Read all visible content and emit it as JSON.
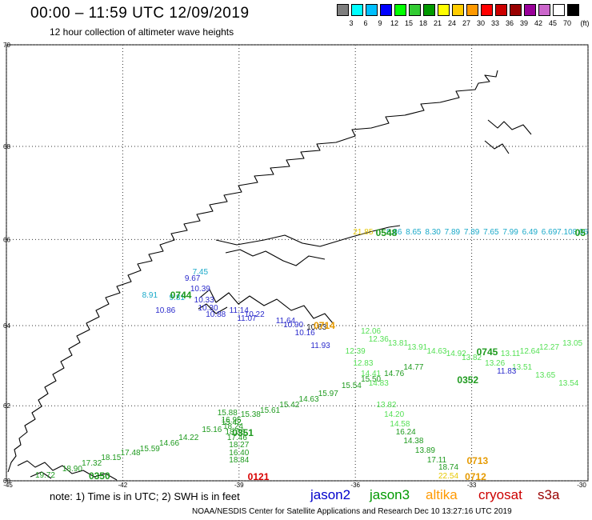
{
  "header": {
    "title": "00:00 – 11:59 UTC 12/09/2019",
    "subtitle": "12 hour collection of altimeter wave heights"
  },
  "color_scale": {
    "colors": [
      "#7f7f7f",
      "#00ffff",
      "#00bfff",
      "#0000ff",
      "#00ff00",
      "#33cc33",
      "#009900",
      "#ffff00",
      "#ffcc00",
      "#ff9900",
      "#ff0000",
      "#cc0000",
      "#990000",
      "#990099",
      "#cc66cc",
      "#ffffff",
      "#000000"
    ],
    "labels": [
      "3",
      "6",
      "9",
      "12",
      "15",
      "18",
      "21",
      "24",
      "27",
      "30",
      "33",
      "36",
      "39",
      "42",
      "45",
      "70"
    ],
    "unit": "(ft)"
  },
  "map": {
    "lat_labels": [
      "70",
      "68",
      "66",
      "64",
      "62",
      "60"
    ],
    "lon_labels": [
      "-45",
      "-42",
      "-39",
      "-36",
      "-33",
      "-30"
    ]
  },
  "tracks": [
    {
      "color": "#1e9a1e",
      "points": [
        [
          "19.72",
          -44.0,
          60.13
        ],
        [
          "18.90",
          -43.3,
          60.3
        ],
        [
          "17.32",
          -42.8,
          60.45
        ],
        [
          "18.15",
          -42.3,
          60.6
        ],
        [
          "17.48",
          -41.8,
          60.75
        ],
        [
          "15.59",
          -41.3,
          60.85
        ],
        [
          "14.66",
          -40.8,
          61.0
        ],
        [
          "14.22",
          -40.3,
          61.15
        ],
        [
          "15.16",
          -39.7,
          61.35
        ],
        [
          "15.42",
          -39.2,
          61.55
        ],
        [
          "15.38",
          -38.7,
          61.75
        ],
        [
          "15.61",
          -38.2,
          61.85
        ],
        [
          "15.42",
          -37.7,
          62.0
        ],
        [
          "14.63",
          -37.2,
          62.15
        ],
        [
          "15.97",
          -36.7,
          62.3
        ],
        [
          "15.54",
          -36.1,
          62.5
        ],
        [
          "15.50",
          -35.6,
          62.65
        ],
        [
          "14.76",
          -35.0,
          62.8
        ],
        [
          "14.77",
          -34.5,
          62.95
        ]
      ]
    },
    {
      "color": "#1e9a1e",
      "points": [
        [
          "15.88",
          -39.3,
          61.8
        ],
        [
          "16.95",
          -39.2,
          61.6
        ],
        [
          "18.24",
          -39.15,
          61.45
        ],
        [
          "18.36",
          -39.1,
          61.3
        ],
        [
          "17.46",
          -39.05,
          61.15
        ],
        [
          "18.27",
          -39.0,
          60.95
        ],
        [
          "16.40",
          -39.0,
          60.75
        ],
        [
          "18.84",
          -39.0,
          60.55
        ]
      ]
    },
    {
      "color": "#55e055",
      "points": [
        [
          "12.36",
          -35.4,
          63.65
        ],
        [
          "13.81",
          -34.9,
          63.55
        ],
        [
          "13.91",
          -34.4,
          63.45
        ],
        [
          "14.63",
          -33.9,
          63.35
        ],
        [
          "14.92",
          -33.4,
          63.3
        ],
        [
          "13.82",
          -33.0,
          63.2
        ],
        [
          "13.26",
          -32.4,
          63.05
        ],
        [
          "13.11",
          -32.0,
          63.3
        ],
        [
          "12.64",
          -31.5,
          63.35
        ],
        [
          "12.27",
          -31.0,
          63.45
        ],
        [
          "13.05",
          -30.4,
          63.55
        ],
        [
          "13.51",
          -31.7,
          62.95
        ],
        [
          "13.65",
          -31.1,
          62.75
        ],
        [
          "13.54",
          -30.5,
          62.55
        ]
      ]
    },
    {
      "color": "#55e055",
      "points": [
        [
          "12.06",
          -35.6,
          63.85
        ],
        [
          "12.39",
          -36.0,
          63.35
        ],
        [
          "12.83",
          -35.8,
          63.05
        ],
        [
          "14.41",
          -35.6,
          62.8
        ],
        [
          "14.83",
          -35.4,
          62.55
        ],
        [
          "13.82",
          -35.2,
          62.0
        ],
        [
          "14.20",
          -35.0,
          61.75
        ],
        [
          "14.58",
          -34.85,
          61.5
        ]
      ]
    },
    {
      "color": "#1e9a1e",
      "points": [
        [
          "16.24",
          -34.7,
          61.3
        ],
        [
          "14.38",
          -34.5,
          61.05
        ],
        [
          "13.89",
          -34.2,
          60.8
        ],
        [
          "17.11",
          -33.9,
          60.55
        ],
        [
          "18.74",
          -33.6,
          60.35
        ]
      ]
    },
    {
      "color": "#2b2bcc",
      "points": [
        [
          "9.67",
          -40.2,
          65.1
        ],
        [
          "10.39",
          -40.0,
          64.85
        ],
        [
          "10.33",
          -39.9,
          64.6
        ],
        [
          "10.30",
          -39.8,
          64.4
        ],
        [
          "10.86",
          -40.9,
          64.35
        ],
        [
          "10.88",
          -39.6,
          64.25
        ],
        [
          "11.14",
          -39.0,
          64.35
        ],
        [
          "10.22",
          -38.6,
          64.25
        ],
        [
          "11.07",
          -38.8,
          64.15
        ],
        [
          "11.64",
          -37.8,
          64.1
        ],
        [
          "10.90",
          -37.6,
          64.0
        ],
        [
          "10.16",
          -37.3,
          63.8
        ],
        [
          "11.93",
          -36.9,
          63.5
        ],
        [
          "11.83",
          -32.1,
          62.85
        ]
      ]
    },
    {
      "color": "#19a9c9",
      "points": [
        [
          "7.45",
          -40.0,
          65.25
        ],
        [
          "8.91",
          -41.3,
          64.7
        ],
        [
          "9.81",
          -40.6,
          64.65
        ],
        [
          "8.86",
          -35.0,
          66.15
        ],
        [
          "8.65",
          -34.5,
          66.15
        ],
        [
          "8.30",
          -34.0,
          66.15
        ],
        [
          "7.89",
          -33.5,
          66.15
        ],
        [
          "7.89",
          -33.0,
          66.15
        ],
        [
          "7.65",
          -32.5,
          66.15
        ],
        [
          "7.99",
          -32.0,
          66.15
        ],
        [
          "6.49",
          -31.5,
          66.15
        ],
        [
          "6.69",
          -31.0,
          66.15
        ],
        [
          "7.10",
          -30.6,
          66.15
        ],
        [
          "8.06",
          -30.2,
          66.15
        ]
      ]
    },
    {
      "color": "#e6c700",
      "points": [
        [
          "21.85",
          -35.8,
          66.15
        ],
        [
          "22.54",
          -33.6,
          60.12
        ]
      ]
    },
    {
      "color": "#222222",
      "points": [
        [
          "10.63",
          -37.0,
          63.95
        ]
      ]
    }
  ],
  "time_labels": [
    {
      "text": "0548",
      "color": "#1e9a1e",
      "lon": -35.2,
      "lat": 66.15
    },
    {
      "text": "0744",
      "color": "#1e9a1e",
      "lon": -40.5,
      "lat": 64.72
    },
    {
      "text": "0714",
      "color": "#e69a00",
      "lon": -36.8,
      "lat": 64.0
    },
    {
      "text": "0745",
      "color": "#1e9a1e",
      "lon": -32.6,
      "lat": 63.35
    },
    {
      "text": "0352",
      "color": "#1e9a1e",
      "lon": -33.1,
      "lat": 62.65
    },
    {
      "text": "0351",
      "color": "#1e9a1e",
      "lon": -38.9,
      "lat": 61.3
    },
    {
      "text": "0350",
      "color": "#1e9a1e",
      "lon": -42.6,
      "lat": 60.13
    },
    {
      "text": "0121",
      "color": "#d80000",
      "lon": -38.5,
      "lat": 60.12
    },
    {
      "text": "0713",
      "color": "#e69a00",
      "lon": -32.85,
      "lat": 60.55
    },
    {
      "text": "0712",
      "color": "#e69a00",
      "lon": -32.9,
      "lat": 60.12
    },
    {
      "text": "05",
      "color": "#1e9a1e",
      "lon": -30.2,
      "lat": 66.15
    }
  ],
  "footer": {
    "note": "note:  1) Time is in UTC;  2) SWH is in feet",
    "satellites": [
      {
        "name": "jason2",
        "color": "#0000cc"
      },
      {
        "name": "jason3",
        "color": "#009900"
      },
      {
        "name": "altika",
        "color": "#ff9900"
      },
      {
        "name": "cryosat",
        "color": "#cc0000"
      },
      {
        "name": "s3a",
        "color": "#990000"
      }
    ],
    "credit": "NOAA/NESDIS Center for Satellite Applications and Research    Dec 10 13:27:16 UTC 2019"
  }
}
